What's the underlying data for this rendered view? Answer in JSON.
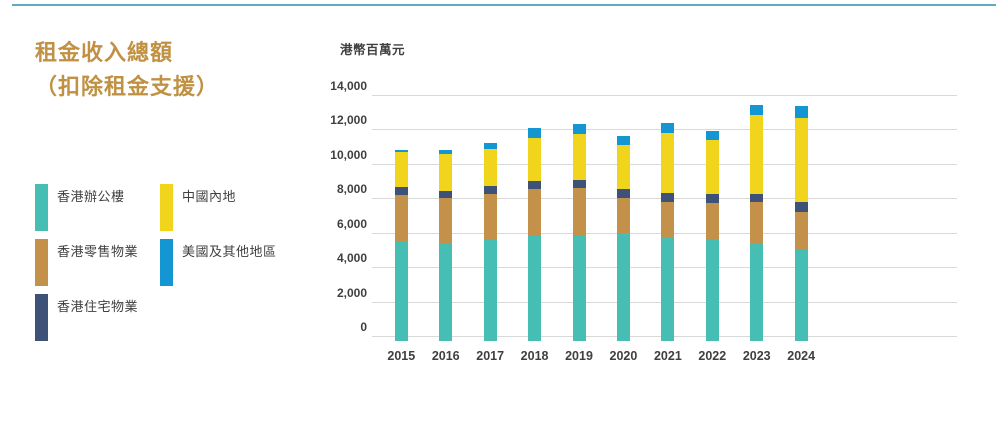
{
  "page": {
    "top_rule_color": "#60ACBE",
    "background": "#FFFFFF",
    "text_color": "#3F3F3F",
    "gridline_color": "#D9D9D9"
  },
  "title": {
    "line1": "租金收入總額",
    "line2": "（扣除租金支援）",
    "color": "#C09143"
  },
  "legend": {
    "items": [
      {
        "label": "香港辦公樓",
        "color": "#47BEB4",
        "column": 1
      },
      {
        "label": "香港零售物業",
        "color": "#C4914A",
        "column": 1
      },
      {
        "label": "香港住宅物業",
        "color": "#3E5278",
        "column": 1
      },
      {
        "label": "中國內地",
        "color": "#F1D51C",
        "column": 2
      },
      {
        "label": "美國及其他地區",
        "color": "#1496D2",
        "column": 2
      }
    ]
  },
  "chart_data": {
    "type": "bar",
    "stacked": true,
    "title": "租金收入總額（扣除租金支援）",
    "unit_label": "港幣百萬元",
    "xlabel": "",
    "ylabel": "港幣百萬元",
    "ylim": [
      0,
      14000
    ],
    "ytick_step": 2000,
    "ytick_labels": [
      "0",
      "2,000",
      "4,000",
      "6,000",
      "8,000",
      "10,000",
      "12,000",
      "14,000"
    ],
    "grid": true,
    "legend_position": "left",
    "categories": [
      "2015",
      "2016",
      "2017",
      "2018",
      "2019",
      "2020",
      "2021",
      "2022",
      "2023",
      "2024"
    ],
    "series": [
      {
        "name": "香港辦公樓",
        "color": "#47BEB4",
        "values": [
          5600,
          5450,
          5640,
          5890,
          5925,
          6025,
          5795,
          5640,
          5425,
          5060
        ]
      },
      {
        "name": "香港零售物業",
        "color": "#C4914A",
        "values": [
          2670,
          2600,
          2665,
          2690,
          2705,
          2030,
          2030,
          2160,
          2400,
          2220
        ]
      },
      {
        "name": "香港住宅物業",
        "color": "#3E5278",
        "values": [
          430,
          440,
          480,
          500,
          520,
          540,
          520,
          485,
          500,
          545
        ]
      },
      {
        "name": "中國內地",
        "color": "#F1D51C",
        "values": [
          2050,
          2170,
          2165,
          2455,
          2625,
          2550,
          3535,
          3145,
          4560,
          4900
        ]
      },
      {
        "name": "美國及其他地區",
        "color": "#1496D2",
        "values": [
          130,
          190,
          325,
          635,
          620,
          540,
          580,
          520,
          580,
          680
        ]
      }
    ],
    "totals": [
      10880,
      10850,
      11275,
      12170,
      12395,
      11685,
      12460,
      11950,
      13465,
      13405
    ]
  }
}
